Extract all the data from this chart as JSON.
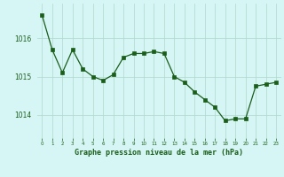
{
  "x": [
    0,
    1,
    2,
    3,
    4,
    5,
    6,
    7,
    8,
    9,
    10,
    11,
    12,
    13,
    14,
    15,
    16,
    17,
    18,
    19,
    20,
    21,
    22,
    23
  ],
  "y": [
    1016.6,
    1015.7,
    1015.1,
    1015.7,
    1015.2,
    1015.0,
    1014.9,
    1015.05,
    1015.5,
    1015.6,
    1015.6,
    1015.65,
    1015.6,
    1015.0,
    1014.85,
    1014.6,
    1014.4,
    1014.2,
    1013.85,
    1013.9,
    1013.9,
    1014.75,
    1014.8,
    1014.85
  ],
  "line_color": "#1a5e1a",
  "marker_color": "#1a5e1a",
  "bg_color": "#d6f5f5",
  "plot_bg_color": "#d6f5f5",
  "grid_color": "#b0d8cc",
  "xlabel": "Graphe pression niveau de la mer (hPa)",
  "xlabel_color": "#1a5e1a",
  "tick_color": "#1a5e1a",
  "yticks": [
    1014,
    1015,
    1016
  ],
  "ylim": [
    1013.4,
    1016.9
  ],
  "xlim": [
    -0.5,
    23.5
  ],
  "xticks": [
    0,
    1,
    2,
    3,
    4,
    5,
    6,
    7,
    8,
    9,
    10,
    11,
    12,
    13,
    14,
    15,
    16,
    17,
    18,
    19,
    20,
    21,
    22,
    23
  ]
}
